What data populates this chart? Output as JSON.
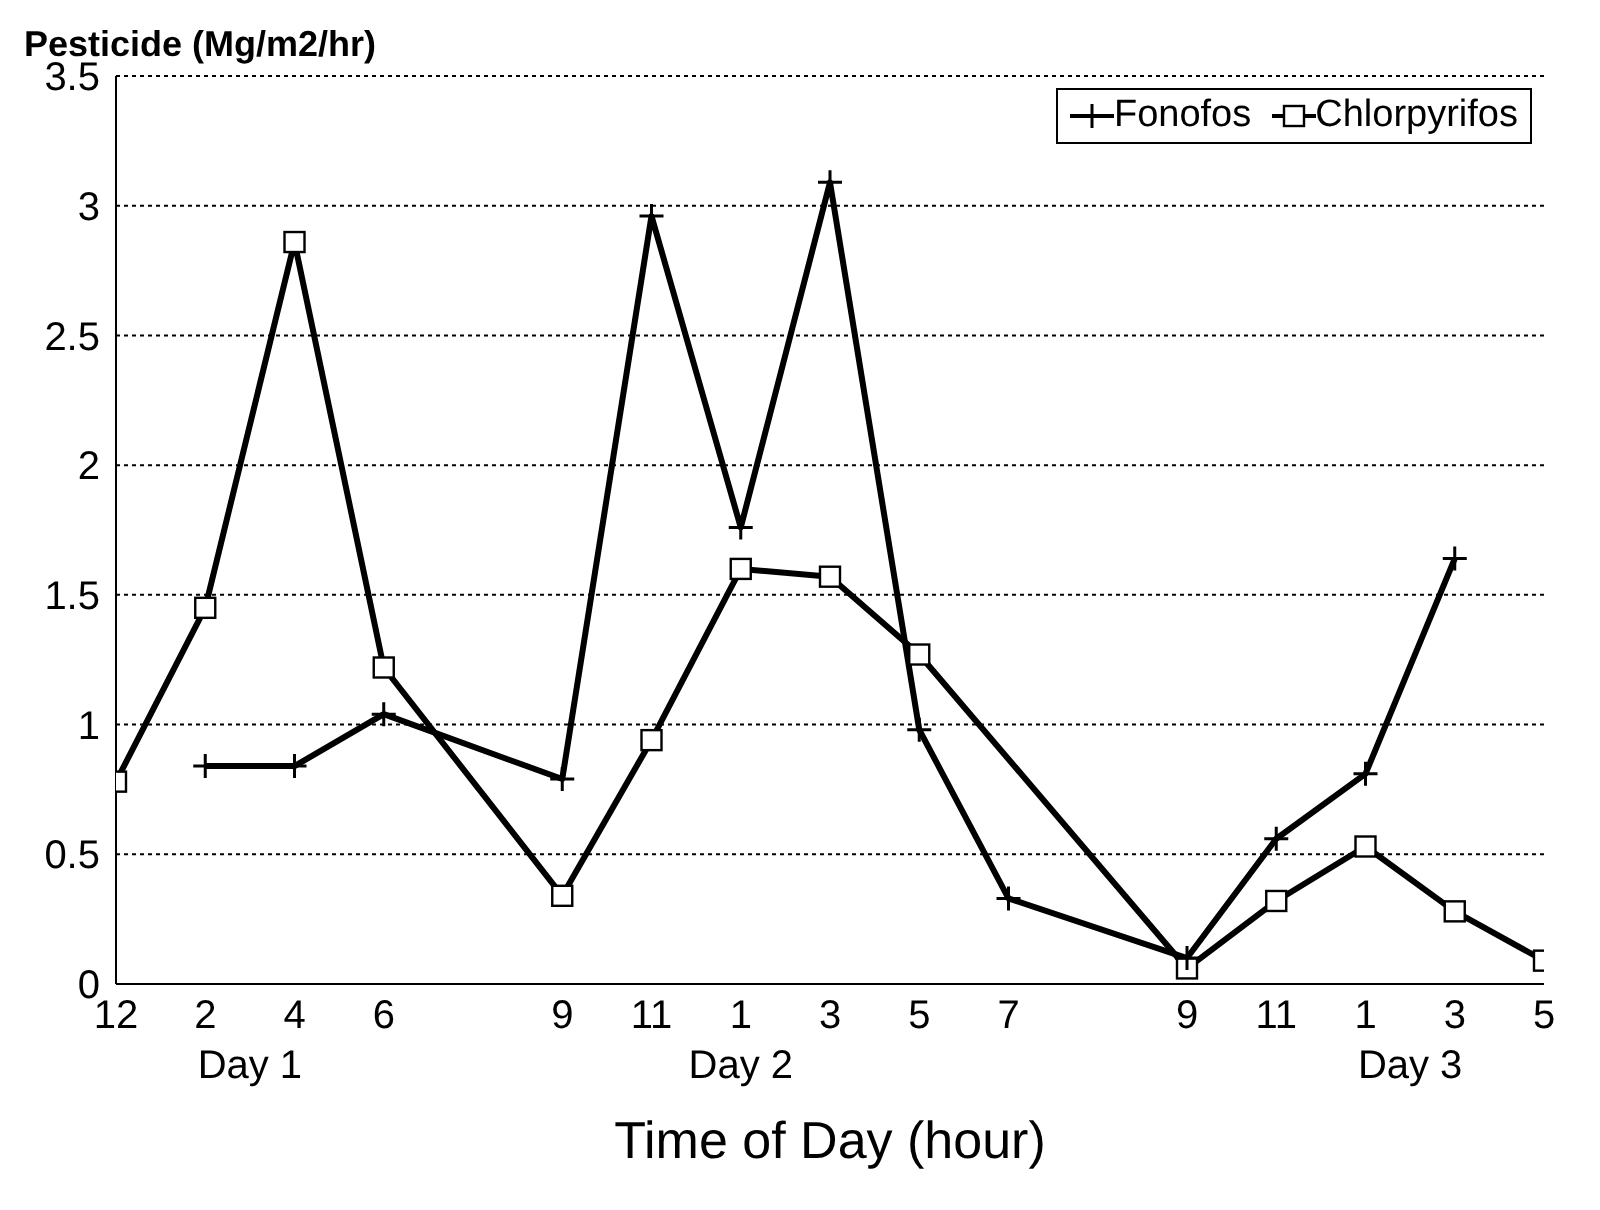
{
  "chart_data": {
    "type": "line",
    "ylabel": "Pesticide (Mg/m2/hr)",
    "xlabel": "Time of Day (hour)",
    "categories": [
      "12",
      "2",
      "4",
      "6",
      null,
      "9",
      "11",
      "1",
      "3",
      "5",
      "7",
      null,
      "9",
      "11",
      "1",
      "3",
      "5"
    ],
    "series": [
      {
        "name": "Fonofos",
        "color": "#000000",
        "marker": "cross",
        "values": [
          null,
          0.84,
          0.84,
          1.04,
          null,
          0.79,
          2.96,
          1.76,
          3.09,
          0.98,
          0.33,
          null,
          0.1,
          0.56,
          0.81,
          1.64,
          null
        ]
      },
      {
        "name": "Chlorpyrifos",
        "color": "#000000",
        "marker": "square",
        "values": [
          0.78,
          1.45,
          2.86,
          1.22,
          null,
          0.34,
          0.94,
          1.6,
          1.57,
          1.27,
          null,
          null,
          0.06,
          0.32,
          0.53,
          0.28,
          0.09
        ]
      }
    ],
    "ylim": [
      0,
      3.5
    ],
    "yticks": [
      0,
      0.5,
      1,
      1.5,
      2,
      2.5,
      3,
      3.5
    ],
    "grid": "y",
    "legend": "top right",
    "line_style": "solid",
    "annotations": [
      "Day 1",
      "Day 2",
      "Day 3"
    ]
  }
}
